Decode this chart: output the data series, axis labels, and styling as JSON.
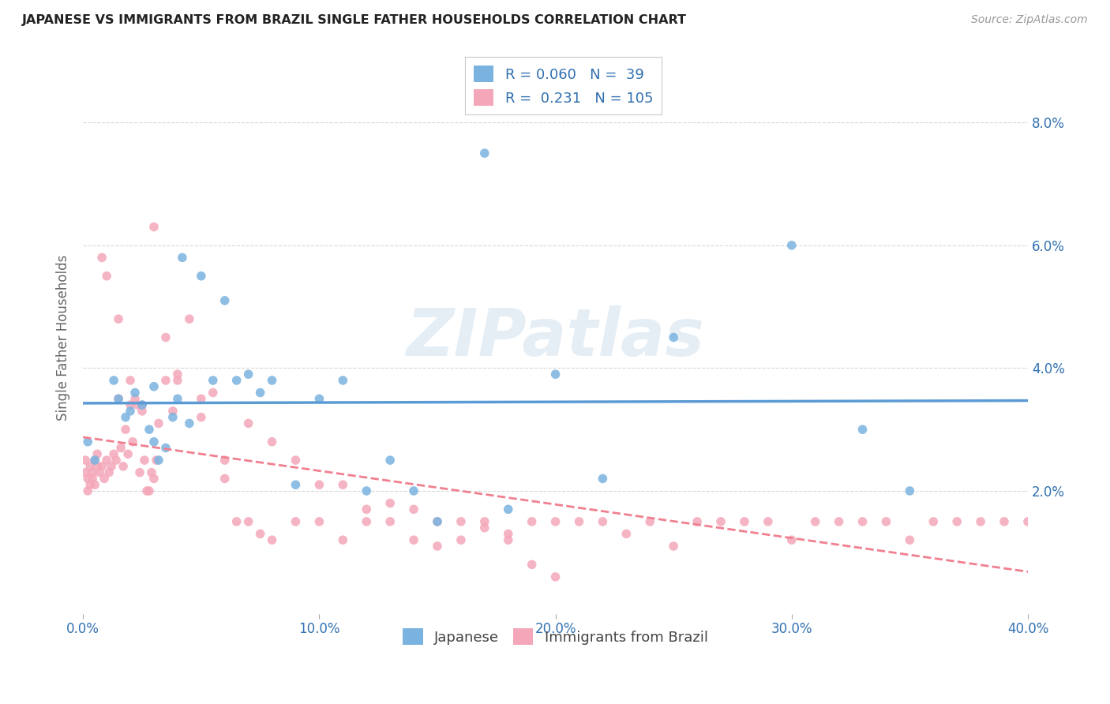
{
  "title": "JAPANESE VS IMMIGRANTS FROM BRAZIL SINGLE FATHER HOUSEHOLDS CORRELATION CHART",
  "source": "Source: ZipAtlas.com",
  "ylabel": "Single Father Households",
  "watermark": "ZIPatlas",
  "legend_label1": "Japanese",
  "legend_label2": "Immigrants from Brazil",
  "R1": "0.060",
  "N1": "39",
  "R2": "0.231",
  "N2": "105",
  "color_japanese": "#7ab3e0",
  "color_brazil": "#f4a7b9",
  "color_text_blue": "#3070b0",
  "color_line_japanese": "#5b9bd5",
  "color_line_brazil": "#f08090",
  "japanese_x": [
    0.2,
    0.5,
    1.3,
    1.5,
    1.8,
    2.0,
    2.2,
    2.5,
    2.8,
    3.0,
    3.0,
    3.2,
    3.5,
    3.8,
    4.0,
    4.2,
    4.5,
    5.0,
    5.5,
    6.0,
    6.5,
    7.0,
    7.5,
    8.0,
    9.0,
    10.0,
    11.0,
    12.0,
    13.0,
    14.0,
    15.0,
    17.0,
    18.0,
    20.0,
    22.0,
    25.0,
    30.0,
    33.0,
    35.0
  ],
  "japanese_y": [
    2.8,
    2.5,
    3.8,
    3.5,
    3.2,
    3.3,
    3.6,
    3.4,
    3.0,
    2.8,
    3.7,
    2.5,
    2.7,
    3.2,
    3.5,
    5.8,
    3.1,
    5.5,
    3.8,
    5.1,
    3.8,
    3.9,
    3.6,
    3.8,
    2.1,
    3.5,
    3.8,
    2.0,
    2.5,
    2.0,
    1.5,
    7.5,
    1.7,
    3.9,
    2.2,
    4.5,
    6.0,
    3.0,
    2.0
  ],
  "brazil_x": [
    0.1,
    0.1,
    0.2,
    0.2,
    0.3,
    0.3,
    0.4,
    0.4,
    0.5,
    0.5,
    0.6,
    0.6,
    0.7,
    0.8,
    0.9,
    1.0,
    1.1,
    1.2,
    1.3,
    1.4,
    1.5,
    1.6,
    1.7,
    1.8,
    1.9,
    2.0,
    2.1,
    2.2,
    2.3,
    2.4,
    2.5,
    2.6,
    2.7,
    2.8,
    2.9,
    3.0,
    3.1,
    3.2,
    3.5,
    3.8,
    4.0,
    4.5,
    5.0,
    5.5,
    6.0,
    6.5,
    7.0,
    7.5,
    8.0,
    9.0,
    10.0,
    11.0,
    12.0,
    13.0,
    14.0,
    15.0,
    16.0,
    17.0,
    18.0,
    19.0,
    20.0,
    21.0,
    22.0,
    23.0,
    24.0,
    25.0,
    26.0,
    27.0,
    28.0,
    29.0,
    30.0,
    31.0,
    32.0,
    33.0,
    34.0,
    35.0,
    36.0,
    37.0,
    38.0,
    39.0,
    40.0,
    0.8,
    1.0,
    1.5,
    2.0,
    2.5,
    3.0,
    3.5,
    4.0,
    5.0,
    6.0,
    7.0,
    8.0,
    9.0,
    10.0,
    11.0,
    12.0,
    13.0,
    14.0,
    15.0,
    16.0,
    17.0,
    18.0,
    19.0,
    20.0
  ],
  "brazil_y": [
    2.5,
    2.3,
    2.2,
    2.0,
    2.4,
    2.1,
    2.3,
    2.2,
    2.5,
    2.1,
    2.4,
    2.6,
    2.3,
    2.4,
    2.2,
    2.5,
    2.3,
    2.4,
    2.6,
    2.5,
    3.5,
    2.7,
    2.4,
    3.0,
    2.6,
    3.8,
    2.8,
    3.5,
    3.4,
    2.3,
    3.3,
    2.5,
    2.0,
    2.0,
    2.3,
    2.2,
    2.5,
    3.1,
    3.8,
    3.3,
    3.9,
    4.8,
    3.5,
    3.6,
    2.5,
    1.5,
    1.5,
    1.3,
    1.2,
    1.5,
    1.5,
    1.2,
    1.5,
    1.5,
    1.2,
    1.1,
    1.5,
    1.5,
    1.2,
    1.5,
    1.5,
    1.5,
    1.5,
    1.3,
    1.5,
    1.1,
    1.5,
    1.5,
    1.5,
    1.5,
    1.2,
    1.5,
    1.5,
    1.5,
    1.5,
    1.2,
    1.5,
    1.5,
    1.5,
    1.5,
    1.5,
    5.8,
    5.5,
    4.8,
    3.4,
    3.4,
    6.3,
    4.5,
    3.8,
    3.2,
    2.2,
    3.1,
    2.8,
    2.5,
    2.1,
    2.1,
    1.7,
    1.8,
    1.7,
    1.5,
    1.2,
    1.4,
    1.3,
    0.8,
    0.6
  ],
  "xmin": 0.0,
  "xmax": 40.0,
  "ymin": 0.0,
  "ymax": 9.0,
  "ytick_vals": [
    2.0,
    4.0,
    6.0,
    8.0
  ],
  "xtick_vals": [
    0.0,
    10.0,
    20.0,
    30.0,
    40.0
  ],
  "background_color": "#ffffff",
  "grid_color": "#d8d8d8"
}
